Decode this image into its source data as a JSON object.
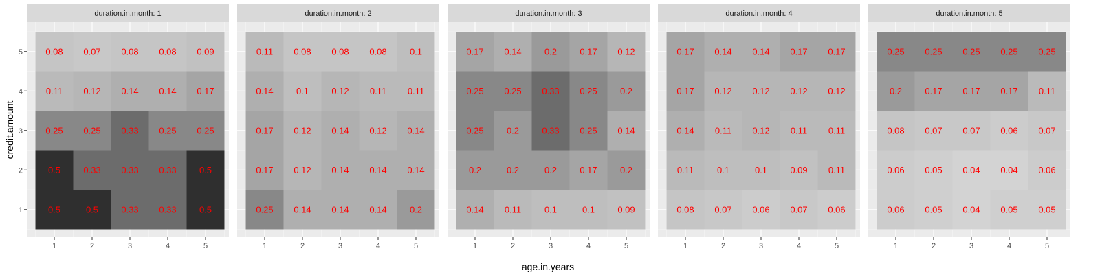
{
  "chart_data": {
    "type": "heatmap",
    "xlabel": "age.in.years",
    "ylabel": "credit.amount",
    "x_ticks": [
      "1",
      "2",
      "3",
      "4",
      "5"
    ],
    "y_ticks": [
      "1",
      "2",
      "3",
      "4",
      "5"
    ],
    "label_color": "#ff0000",
    "fill_low": "#d3d3d3",
    "fill_high": "#2f2f2f",
    "fill_range": [
      0.04,
      0.5
    ],
    "panels": [
      {
        "title": "duration.in.month: 1",
        "rows": [
          {
            "y": "5",
            "values": [
              0.08,
              0.07,
              0.08,
              0.08,
              0.09
            ]
          },
          {
            "y": "4",
            "values": [
              0.11,
              0.12,
              0.14,
              0.14,
              0.17
            ]
          },
          {
            "y": "3",
            "values": [
              0.25,
              0.25,
              0.33,
              0.25,
              0.25
            ]
          },
          {
            "y": "2",
            "values": [
              0.5,
              0.33,
              0.33,
              0.33,
              0.5
            ]
          },
          {
            "y": "1",
            "values": [
              0.5,
              0.5,
              0.33,
              0.33,
              0.5
            ]
          }
        ]
      },
      {
        "title": "duration.in.month: 2",
        "rows": [
          {
            "y": "5",
            "values": [
              0.11,
              0.08,
              0.08,
              0.08,
              0.1
            ]
          },
          {
            "y": "4",
            "values": [
              0.14,
              0.1,
              0.12,
              0.11,
              0.11
            ]
          },
          {
            "y": "3",
            "values": [
              0.17,
              0.12,
              0.14,
              0.12,
              0.14
            ]
          },
          {
            "y": "2",
            "values": [
              0.17,
              0.12,
              0.14,
              0.14,
              0.14
            ]
          },
          {
            "y": "1",
            "values": [
              0.25,
              0.14,
              0.14,
              0.14,
              0.2
            ]
          }
        ]
      },
      {
        "title": "duration.in.month: 3",
        "rows": [
          {
            "y": "5",
            "values": [
              0.17,
              0.14,
              0.2,
              0.17,
              0.12
            ]
          },
          {
            "y": "4",
            "values": [
              0.25,
              0.25,
              0.33,
              0.25,
              0.2
            ]
          },
          {
            "y": "3",
            "values": [
              0.25,
              0.2,
              0.33,
              0.25,
              0.14
            ]
          },
          {
            "y": "2",
            "values": [
              0.2,
              0.2,
              0.2,
              0.17,
              0.2
            ]
          },
          {
            "y": "1",
            "values": [
              0.14,
              0.11,
              0.1,
              0.1,
              0.09
            ]
          }
        ]
      },
      {
        "title": "duration.in.month: 4",
        "rows": [
          {
            "y": "5",
            "values": [
              0.17,
              0.14,
              0.14,
              0.17,
              0.17
            ]
          },
          {
            "y": "4",
            "values": [
              0.17,
              0.12,
              0.12,
              0.12,
              0.12
            ]
          },
          {
            "y": "3",
            "values": [
              0.14,
              0.11,
              0.12,
              0.11,
              0.11
            ]
          },
          {
            "y": "2",
            "values": [
              0.11,
              0.1,
              0.1,
              0.09,
              0.11
            ]
          },
          {
            "y": "1",
            "values": [
              0.08,
              0.07,
              0.06,
              0.07,
              0.06
            ]
          }
        ]
      },
      {
        "title": "duration.in.month: 5",
        "rows": [
          {
            "y": "5",
            "values": [
              0.25,
              0.25,
              0.25,
              0.25,
              0.25
            ]
          },
          {
            "y": "4",
            "values": [
              0.2,
              0.17,
              0.17,
              0.17,
              0.11
            ]
          },
          {
            "y": "3",
            "values": [
              0.08,
              0.07,
              0.07,
              0.06,
              0.07
            ]
          },
          {
            "y": "2",
            "values": [
              0.06,
              0.05,
              0.04,
              0.04,
              0.06
            ]
          },
          {
            "y": "1",
            "values": [
              0.06,
              0.05,
              0.04,
              0.05,
              0.05
            ]
          }
        ]
      }
    ]
  }
}
